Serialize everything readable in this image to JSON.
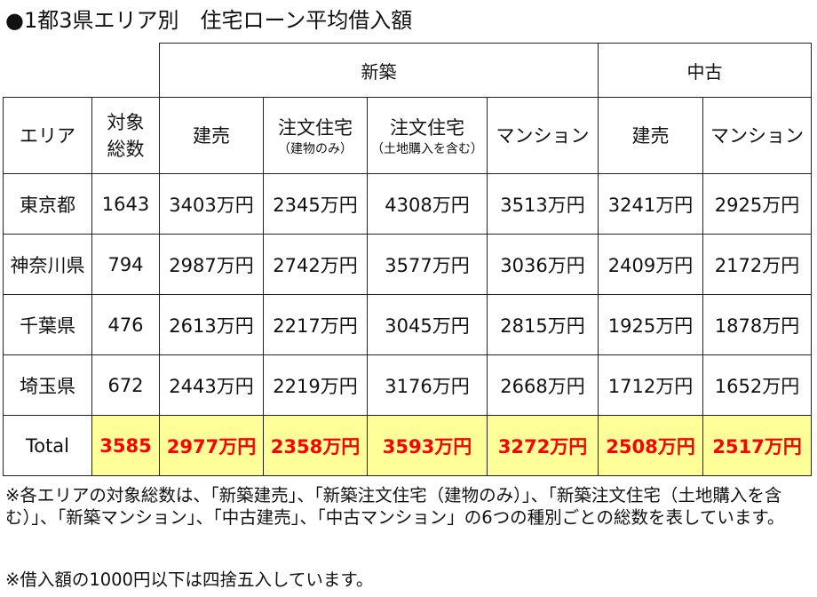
{
  "title": "●1都3県エリア別　住宅ローン平均借入額",
  "groups": {
    "new": "新築",
    "used": "中古"
  },
  "headers": {
    "area": "エリア",
    "count_line1": "対象",
    "count_line2": "総数",
    "new_tateuri": "建売",
    "new_chumon_build": "注文住宅",
    "new_chumon_build_sub": "（建物のみ）",
    "new_chumon_land": "注文住宅",
    "new_chumon_land_sub": "（土地購入を含む）",
    "new_mansion": "マンション",
    "used_tateuri": "建売",
    "used_mansion": "マンション"
  },
  "rows": [
    {
      "area": "東京都",
      "count": "1643",
      "new_tateuri": "3403万円",
      "new_chumon_build": "2345万円",
      "new_chumon_land": "4308万円",
      "new_mansion": "3513万円",
      "used_tateuri": "3241万円",
      "used_mansion": "2925万円"
    },
    {
      "area": "神奈川県",
      "count": "794",
      "new_tateuri": "2987万円",
      "new_chumon_build": "2742万円",
      "new_chumon_land": "3577万円",
      "new_mansion": "3036万円",
      "used_tateuri": "2409万円",
      "used_mansion": "2172万円"
    },
    {
      "area": "千葉県",
      "count": "476",
      "new_tateuri": "2613万円",
      "new_chumon_build": "2217万円",
      "new_chumon_land": "3045万円",
      "new_mansion": "2815万円",
      "used_tateuri": "1925万円",
      "used_mansion": "1878万円"
    },
    {
      "area": "埼玉県",
      "count": "672",
      "new_tateuri": "2443万円",
      "new_chumon_build": "2219万円",
      "new_chumon_land": "3176万円",
      "new_mansion": "2668万円",
      "used_tateuri": "1712万円",
      "used_mansion": "1652万円"
    }
  ],
  "total": {
    "label": "Total",
    "count": "3585",
    "new_tateuri": "2977万円",
    "new_chumon_build": "2358万円",
    "new_chumon_land": "3593万円",
    "new_mansion": "3272万円",
    "used_tateuri": "2508万円",
    "used_mansion": "2517万円"
  },
  "notes": {
    "note1": "※各エリアの対象総数は、「新築建売」、「新築注文住宅（建物のみ）」、「新築注文住宅（土地購入を含む）」、「新築マンション」、「中古建売」、「中古マンション」の6つの種別ごとの総数を表しています。",
    "note2": "※借入額の1000円以下は四捨五入しています。"
  },
  "colors": {
    "total_background": "#ffff99",
    "total_text": "#ff0000"
  }
}
